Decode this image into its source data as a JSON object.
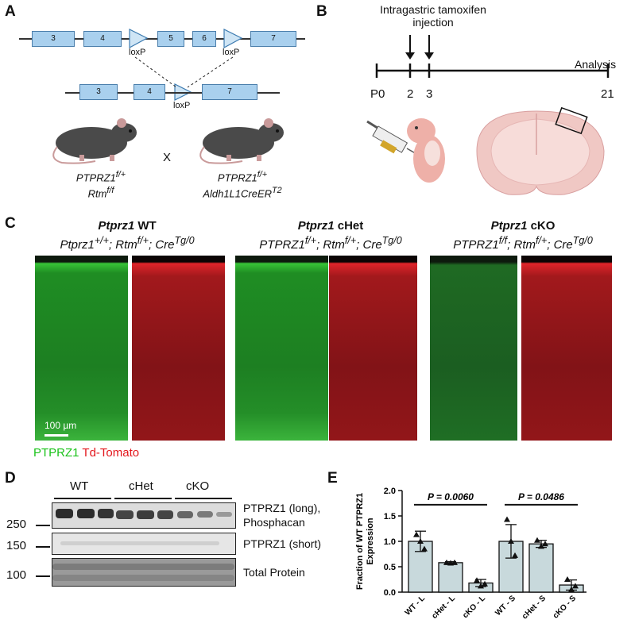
{
  "panels": {
    "A": "A",
    "B": "B",
    "C": "C",
    "D": "D",
    "E": "E"
  },
  "panelA": {
    "exons_top": [
      "3",
      "4",
      "5",
      "6",
      "7"
    ],
    "exons_bottom": [
      "3",
      "4",
      "7"
    ],
    "loxp": "loxP",
    "mouse1_line1": "PTPRZ1",
    "mouse1_sup1": "f/+",
    "mouse1_line2": "Rtm",
    "mouse1_sup2": "f/f",
    "cross": "X",
    "mouse2_line1": "PTPRZ1",
    "mouse2_sup1": "f/+",
    "mouse2_line2": "Aldh1L1CreER",
    "mouse2_sup2": "T2"
  },
  "panelB": {
    "title_line1": "Intragastric tamoxifen",
    "title_line2": "injection",
    "analysis": "Analysis",
    "ticks": [
      "P0",
      "2",
      "3",
      "21"
    ]
  },
  "panelC": {
    "groups": [
      {
        "name": "Ptprz1",
        "suffix": " WT",
        "geno1": "Ptprz1",
        "sup1": "+/+",
        "geno2": "; Rtm",
        "sup2": "f/+",
        "geno3": "; Cre",
        "sup3": "Tg/0"
      },
      {
        "name": "Ptprz1",
        "suffix": " cHet",
        "geno1": "PTPRZ1",
        "sup1": "f/+",
        "geno2": "; Rtm",
        "sup2": "f/+",
        "geno3": "; Cre",
        "sup3": "Tg/0"
      },
      {
        "name": "Ptprz1",
        "suffix": " cKO",
        "geno1": "PTPRZ1",
        "sup1": "f/f",
        "geno2": "; Rtm",
        "sup2": "f/+",
        "geno3": "; Cre",
        "sup3": "Tg/0"
      }
    ],
    "scalebar": "100 µm",
    "legend_green": "PTPRZ1",
    "legend_red": "Td-Tomato",
    "color_green": "#19c219",
    "color_red": "#e3161c"
  },
  "panelD": {
    "groups": [
      "WT",
      "cHet",
      "cKO"
    ],
    "markers": [
      "250",
      "150",
      "100"
    ],
    "blot_labels": [
      "PTPRZ1 (long),",
      "Phosphacan",
      "PTPRZ1 (short)",
      "Total Protein"
    ]
  },
  "chart_data": {
    "type": "bar",
    "categories": [
      "WT - L",
      "cHet - L",
      "cKO - L",
      "WT - S",
      "cHet - S",
      "cKO - S"
    ],
    "values": [
      1.0,
      0.58,
      0.18,
      1.0,
      0.95,
      0.14
    ],
    "errors": [
      0.2,
      0.02,
      0.07,
      0.33,
      0.07,
      0.1
    ],
    "points": [
      [
        1.13,
        1.0,
        0.85
      ],
      [
        0.58,
        0.57,
        0.58
      ],
      [
        0.23,
        0.12,
        0.16
      ],
      [
        1.43,
        1.0,
        0.72
      ],
      [
        1.02,
        0.9,
        0.95
      ],
      [
        0.25,
        0.05,
        0.12
      ]
    ],
    "ylabel": "Fraction of WT PTPRZ1 Expression",
    "ylim": [
      0,
      2.0
    ],
    "yticks": [
      "0.0",
      "0.5",
      "1.0",
      "1.5",
      "2.0"
    ],
    "annotations": [
      "P = 0.0060",
      "P = 0.0486"
    ],
    "bar_color": "#c8d9dc"
  }
}
